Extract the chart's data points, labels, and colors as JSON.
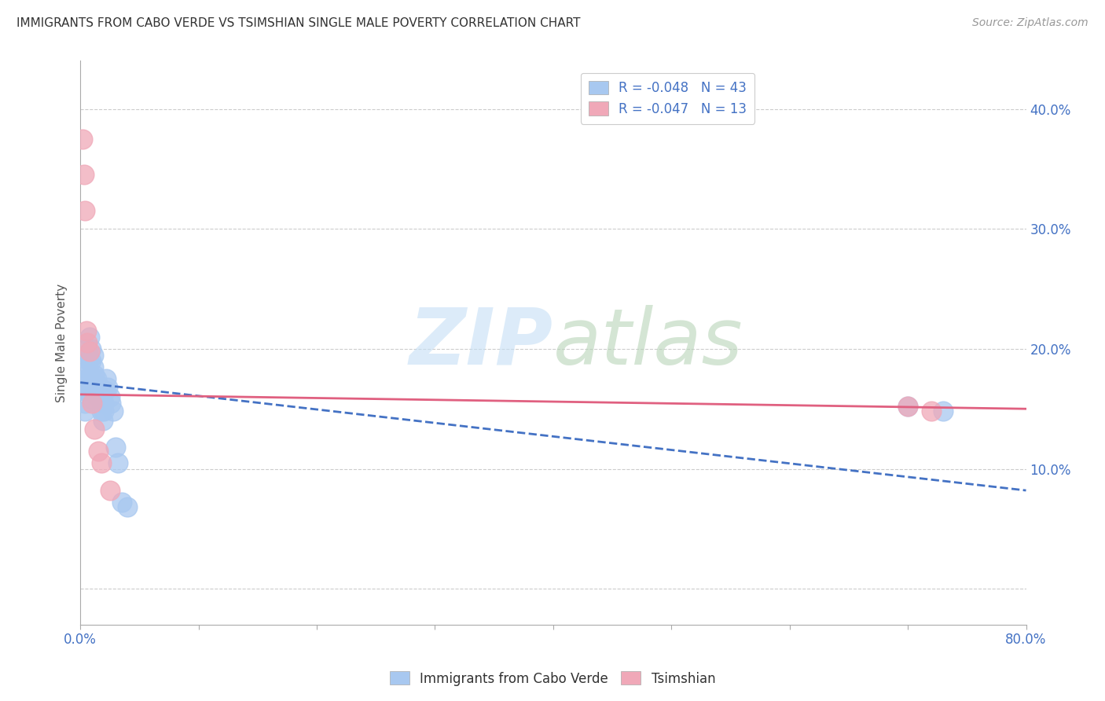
{
  "title": "IMMIGRANTS FROM CABO VERDE VS TSIMSHIAN SINGLE MALE POVERTY CORRELATION CHART",
  "source": "Source: ZipAtlas.com",
  "ylabel": "Single Male Poverty",
  "xlim": [
    0,
    0.8
  ],
  "ylim": [
    -0.03,
    0.44
  ],
  "yticks": [
    0.0,
    0.1,
    0.2,
    0.3,
    0.4
  ],
  "ytick_labels": [
    "",
    "10.0%",
    "20.0%",
    "30.0%",
    "40.0%"
  ],
  "xticks": [
    0.0,
    0.1,
    0.2,
    0.3,
    0.4,
    0.5,
    0.6,
    0.7,
    0.8
  ],
  "xtick_labels": [
    "0.0%",
    "",
    "",
    "",
    "",
    "",
    "",
    "",
    "80.0%"
  ],
  "cabo_verde_R": "-0.048",
  "cabo_verde_N": "43",
  "tsimshian_R": "-0.047",
  "tsimshian_N": "13",
  "cabo_verde_color": "#a8c8f0",
  "tsimshian_color": "#f0a8b8",
  "cabo_verde_line_color": "#4472c4",
  "tsimshian_line_color": "#e06080",
  "cabo_verde_x": [
    0.002,
    0.003,
    0.004,
    0.004,
    0.005,
    0.005,
    0.005,
    0.006,
    0.006,
    0.007,
    0.007,
    0.008,
    0.008,
    0.009,
    0.009,
    0.01,
    0.01,
    0.01,
    0.011,
    0.011,
    0.012,
    0.013,
    0.013,
    0.014,
    0.015,
    0.016,
    0.017,
    0.018,
    0.019,
    0.02,
    0.02,
    0.021,
    0.022,
    0.023,
    0.025,
    0.026,
    0.028,
    0.03,
    0.032,
    0.035,
    0.04,
    0.7,
    0.73
  ],
  "cabo_verde_y": [
    0.17,
    0.165,
    0.155,
    0.148,
    0.185,
    0.175,
    0.165,
    0.2,
    0.195,
    0.19,
    0.182,
    0.21,
    0.175,
    0.2,
    0.19,
    0.17,
    0.165,
    0.158,
    0.195,
    0.185,
    0.178,
    0.168,
    0.162,
    0.175,
    0.17,
    0.165,
    0.158,
    0.148,
    0.14,
    0.155,
    0.148,
    0.165,
    0.175,
    0.168,
    0.16,
    0.155,
    0.148,
    0.118,
    0.105,
    0.072,
    0.068,
    0.152,
    0.148
  ],
  "tsimshian_x": [
    0.002,
    0.003,
    0.004,
    0.005,
    0.006,
    0.008,
    0.01,
    0.012,
    0.015,
    0.018,
    0.025,
    0.7,
    0.72
  ],
  "tsimshian_y": [
    0.375,
    0.345,
    0.315,
    0.215,
    0.205,
    0.198,
    0.155,
    0.133,
    0.115,
    0.105,
    0.082,
    0.152,
    0.148
  ],
  "cabo_trendline_x": [
    0.0,
    0.8
  ],
  "cabo_trendline_y": [
    0.172,
    0.082
  ],
  "tsimshian_trendline_x": [
    0.0,
    0.8
  ],
  "tsimshian_trendline_y": [
    0.162,
    0.15
  ]
}
